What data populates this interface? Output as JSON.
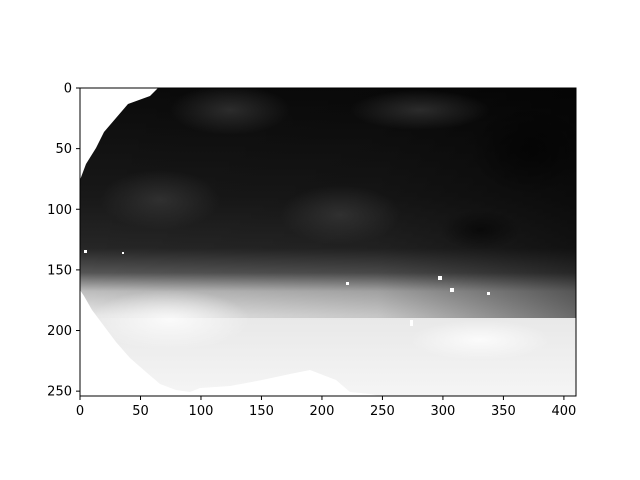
{
  "chart_data": {
    "type": "heatmap",
    "title": "",
    "xlabel": "",
    "ylabel": "",
    "colormap": "gray",
    "image_width": 410,
    "image_height": 254,
    "xlim": [
      0,
      410
    ],
    "ylim": [
      254,
      0
    ],
    "y_axis_inverted": true,
    "grid": false,
    "x_ticks": [
      {
        "value": 0,
        "label": "0"
      },
      {
        "value": 50,
        "label": "50"
      },
      {
        "value": 100,
        "label": "100"
      },
      {
        "value": 150,
        "label": "150"
      },
      {
        "value": 200,
        "label": "200"
      },
      {
        "value": 250,
        "label": "250"
      },
      {
        "value": 300,
        "label": "300"
      },
      {
        "value": 350,
        "label": "350"
      },
      {
        "value": 400,
        "label": "400"
      }
    ],
    "y_ticks": [
      {
        "value": 0,
        "label": "0"
      },
      {
        "value": 50,
        "label": "50"
      },
      {
        "value": 100,
        "label": "100"
      },
      {
        "value": 150,
        "label": "150"
      },
      {
        "value": 200,
        "label": "200"
      },
      {
        "value": 250,
        "label": "250"
      }
    ],
    "description_regions": [
      {
        "region": "rows 0-150",
        "tone": "dark"
      },
      {
        "region": "rows 150-200",
        "tone": "transition"
      },
      {
        "region": "rows 200-254",
        "tone": "light"
      }
    ]
  }
}
